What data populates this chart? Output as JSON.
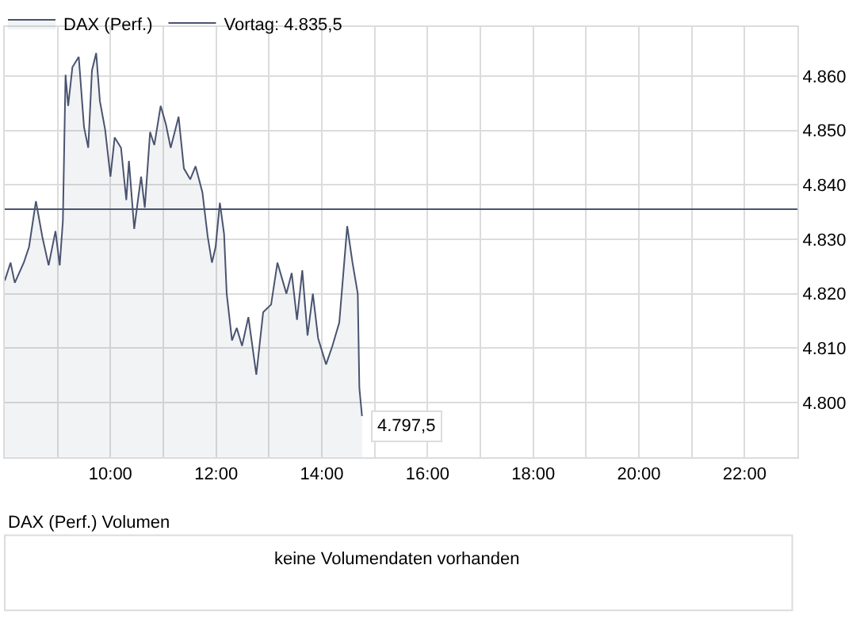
{
  "chart_data": {
    "type": "area",
    "series": [
      {
        "name": "DAX (Perf.)",
        "color": "#4a5470",
        "x": [
          8.0,
          8.11,
          8.19,
          8.36,
          8.46,
          8.59,
          8.71,
          8.83,
          8.96,
          9.04,
          9.1,
          9.15,
          9.2,
          9.28,
          9.4,
          9.5,
          9.58,
          9.65,
          9.73,
          9.8,
          9.9,
          10.0,
          10.08,
          10.2,
          10.3,
          10.35,
          10.45,
          10.52,
          10.58,
          10.65,
          10.75,
          10.83,
          10.95,
          11.05,
          11.14,
          11.29,
          11.39,
          11.51,
          11.61,
          11.74,
          11.84,
          11.92,
          11.99,
          12.07,
          12.15,
          12.2,
          12.3,
          12.39,
          12.49,
          12.61,
          12.76,
          12.89,
          13.04,
          13.16,
          13.33,
          13.43,
          13.53,
          13.63,
          13.73,
          13.83,
          13.93,
          14.08,
          14.2,
          14.33,
          14.48,
          14.58,
          14.68,
          14.71,
          14.76
        ],
        "values": [
          4822.4,
          4825.7,
          4822,
          4825.7,
          4828.6,
          4837,
          4830.5,
          4825.2,
          4831.5,
          4825.2,
          4833.4,
          4860.2,
          4854.5,
          4861.6,
          4863.5,
          4850.6,
          4846.8,
          4861,
          4864.2,
          4855.4,
          4850.1,
          4841.5,
          4848.7,
          4846.8,
          4837.2,
          4844.4,
          4831.9,
          4837.2,
          4841.5,
          4835.8,
          4849.7,
          4847.3,
          4854.5,
          4851.1,
          4846.8,
          4852.5,
          4843,
          4841,
          4843.4,
          4838.6,
          4830.5,
          4825.7,
          4828.6,
          4836.7,
          4831,
          4820,
          4811.4,
          4813.7,
          4810.4,
          4815.7,
          4805.1,
          4816.6,
          4818,
          4825.7,
          4820,
          4823.8,
          4815.2,
          4824.3,
          4812.3,
          4820,
          4811.8,
          4807,
          4810.4,
          4814.7,
          4832.4,
          4825.7,
          4820,
          4802.7,
          4797.5
        ]
      }
    ],
    "ref_lines": [
      {
        "axis": "y",
        "value": 4835.5,
        "label": "Vortag: 4.835,5",
        "color": "#4a5470"
      }
    ],
    "annotations": [
      {
        "text": "4.797,5",
        "x": 14.76,
        "y": 4797.5
      },
      "DAX (Perf.) Volumen",
      "keine Volumendaten vorhanden"
    ],
    "xlim": [
      8,
      23
    ],
    "xticks": [
      {
        "value": 9,
        "label": null
      },
      {
        "value": 10,
        "label": "10:00"
      },
      {
        "value": 11,
        "label": null
      },
      {
        "value": 12,
        "label": "12:00"
      },
      {
        "value": 13,
        "label": null
      },
      {
        "value": 14,
        "label": "14:00"
      },
      {
        "value": 15,
        "label": null
      },
      {
        "value": 16,
        "label": "16:00"
      },
      {
        "value": 17,
        "label": null
      },
      {
        "value": 18,
        "label": "18:00"
      },
      {
        "value": 19,
        "label": null
      },
      {
        "value": 20,
        "label": "20:00"
      },
      {
        "value": 21,
        "label": null
      },
      {
        "value": 22,
        "label": "22:00"
      }
    ],
    "ylim": [
      4790,
      4869
    ],
    "yticks": [
      {
        "value": 4800,
        "label": "4.800"
      },
      {
        "value": 4810,
        "label": "4.810"
      },
      {
        "value": 4820,
        "label": "4.820"
      },
      {
        "value": 4830,
        "label": "4.830"
      },
      {
        "value": 4840,
        "label": "4.840"
      },
      {
        "value": 4850,
        "label": "4.850"
      },
      {
        "value": 4860,
        "label": "4.860"
      }
    ],
    "grid": true,
    "legend": "top left",
    "marker": "none",
    "line_style": "solid"
  }
}
